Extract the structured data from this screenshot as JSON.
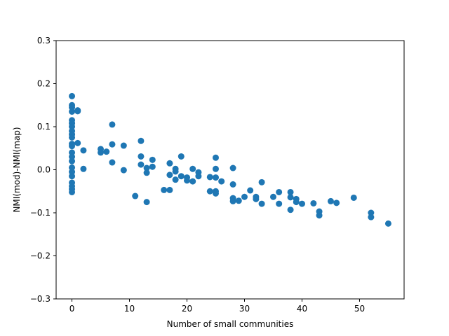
{
  "chart_data": {
    "type": "scatter",
    "title": "",
    "xlabel": "Number of small communities",
    "ylabel": "NMI(mod)-NMI(map)",
    "xlim": [
      -2.75,
      57.75
    ],
    "ylim": [
      -0.3,
      0.3
    ],
    "xticks": [
      0,
      10,
      20,
      30,
      40,
      50
    ],
    "yticks": [
      -0.3,
      -0.2,
      -0.1,
      0.0,
      0.1,
      0.2,
      0.3
    ],
    "xtick_labels": [
      "0",
      "10",
      "20",
      "30",
      "40",
      "50"
    ],
    "ytick_labels": [
      "−0.3",
      "−0.2",
      "−0.1",
      "0.0",
      "0.1",
      "0.2",
      "0.3"
    ],
    "grid": false,
    "marker_color": "#1f77b4",
    "series": [
      {
        "x": [
          0,
          0,
          0,
          0,
          0,
          0,
          0,
          0,
          0,
          0,
          0,
          0,
          0,
          0,
          0,
          0,
          0,
          0,
          0,
          0,
          0,
          0,
          1,
          1,
          1,
          2,
          2,
          5,
          5,
          6,
          7,
          7,
          7,
          9,
          9,
          11,
          12,
          12,
          12,
          13,
          13,
          13,
          14,
          14,
          16,
          17,
          17,
          17,
          18,
          18,
          18,
          19,
          19,
          20,
          20,
          21,
          21,
          22,
          22,
          24,
          24,
          25,
          25,
          25,
          25,
          25,
          26,
          28,
          28,
          28,
          28,
          29,
          30,
          31,
          32,
          32,
          33,
          33,
          35,
          36,
          36,
          38,
          38,
          38,
          39,
          39,
          40,
          42,
          43,
          43,
          45,
          46,
          49,
          52,
          52,
          55
        ],
        "y": [
          0.171,
          0.15,
          0.145,
          0.135,
          0.115,
          0.108,
          0.1,
          0.09,
          0.082,
          0.075,
          0.06,
          0.055,
          0.04,
          0.03,
          0.02,
          0.005,
          -0.005,
          -0.015,
          -0.03,
          -0.038,
          -0.045,
          -0.052,
          0.138,
          0.136,
          0.062,
          0.045,
          0.002,
          0.048,
          0.04,
          0.042,
          0.105,
          0.059,
          0.017,
          0.056,
          -0.001,
          -0.061,
          0.067,
          0.031,
          0.012,
          0.004,
          -0.007,
          -0.075,
          0.023,
          0.007,
          -0.047,
          0.015,
          -0.012,
          -0.047,
          0.002,
          -0.004,
          -0.023,
          0.031,
          -0.015,
          -0.018,
          -0.025,
          0.002,
          -0.027,
          -0.006,
          -0.015,
          -0.017,
          -0.05,
          0.028,
          0.002,
          -0.018,
          -0.05,
          -0.055,
          -0.027,
          0.004,
          -0.034,
          -0.066,
          -0.073,
          -0.072,
          -0.063,
          -0.048,
          -0.063,
          -0.068,
          -0.029,
          -0.079,
          -0.063,
          -0.052,
          -0.079,
          -0.052,
          -0.064,
          -0.093,
          -0.068,
          -0.075,
          -0.079,
          -0.078,
          -0.097,
          -0.106,
          -0.073,
          -0.077,
          -0.065,
          -0.1,
          -0.11,
          -0.125
        ]
      }
    ]
  }
}
